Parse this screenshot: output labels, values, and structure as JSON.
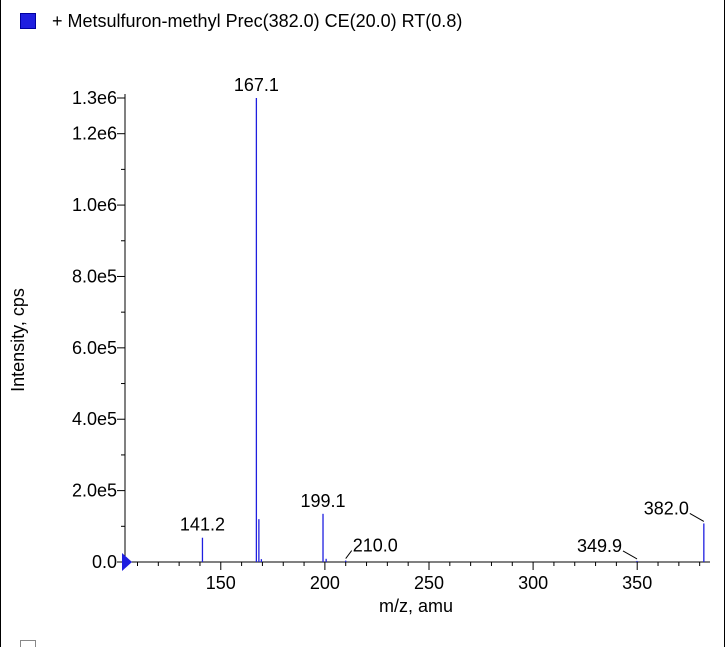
{
  "legend": {
    "label": "+ Metsulfuron-methyl Prec(382.0) CE(20.0) RT(0.8)",
    "color": "#1f1fe0"
  },
  "colors": {
    "stick": "#1f1fe0",
    "axis": "#000000",
    "marker": "#1f1fe0"
  },
  "chart_data": {
    "type": "bar",
    "subtype": "mass-spectrum-stick",
    "title": "+ Metsulfuron-methyl Prec(382.0) CE(20.0) RT(0.8)",
    "xlabel": "m/z, amu",
    "ylabel": "Intensity, cps",
    "xlim": [
      104,
      384
    ],
    "ylim": [
      0,
      1350000
    ],
    "x_ticks": [
      150,
      200,
      250,
      300,
      350
    ],
    "x_tick_labels": [
      "150",
      "200",
      "250",
      "300",
      "350"
    ],
    "y_ticks": [
      0,
      200000,
      400000,
      600000,
      800000,
      1000000,
      1200000,
      1300000
    ],
    "y_tick_labels": [
      "0.0",
      "2.0e5",
      "4.0e5",
      "6.0e5",
      "8.0e5",
      "1.0e6",
      "1.2e6",
      "1.3e6"
    ],
    "grid": false,
    "peaks": [
      {
        "mz": 141.2,
        "intensity": 68000
      },
      {
        "mz": 167.1,
        "intensity": 1300000
      },
      {
        "mz": 168.3,
        "intensity": 120000
      },
      {
        "mz": 169.5,
        "intensity": 8000
      },
      {
        "mz": 199.1,
        "intensity": 135000
      },
      {
        "mz": 200.6,
        "intensity": 9000
      },
      {
        "mz": 210.0,
        "intensity": 4000
      },
      {
        "mz": 349.9,
        "intensity": 3000
      },
      {
        "mz": 382.0,
        "intensity": 108000
      }
    ],
    "peak_labels": [
      {
        "text": "141.2",
        "mz": 141.2,
        "intensity": 68000,
        "leader": false
      },
      {
        "text": "167.1",
        "mz": 167.1,
        "intensity": 1300000,
        "leader": false
      },
      {
        "text": "199.1",
        "mz": 199.1,
        "intensity": 135000,
        "leader": false
      },
      {
        "text": "210.0",
        "mz": 210.0,
        "intensity": 4000,
        "leader": true,
        "side": "right"
      },
      {
        "text": "349.9",
        "mz": 349.9,
        "intensity": 3000,
        "leader": true,
        "side": "left"
      },
      {
        "text": "382.0",
        "mz": 382.0,
        "intensity": 108000,
        "leader": true,
        "side": "left"
      }
    ]
  }
}
